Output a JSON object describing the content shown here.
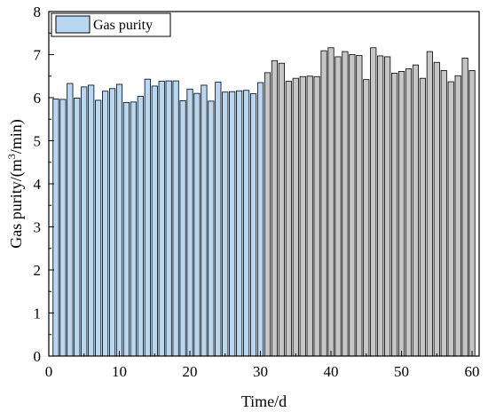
{
  "chart_data": {
    "type": "bar",
    "xlabel": "Time/d",
    "ylabel_main": "Gas purity/(m",
    "ylabel_sup": "3",
    "ylabel_end": "/min)",
    "xlim": [
      0,
      61
    ],
    "ylim": [
      0,
      8
    ],
    "xticks": [
      0,
      10,
      20,
      30,
      40,
      50,
      60
    ],
    "yticks": [
      0,
      1,
      2,
      3,
      4,
      5,
      6,
      7,
      8
    ],
    "legend": {
      "label": "Gas purity",
      "position": "top-left"
    },
    "colors": {
      "series_a": "#b7d7f3",
      "series_b": "#c6c6c6",
      "edge": "#000000"
    },
    "split_after_day": 30,
    "x": [
      1,
      2,
      3,
      4,
      5,
      6,
      7,
      8,
      9,
      10,
      11,
      12,
      13,
      14,
      15,
      16,
      17,
      18,
      19,
      20,
      21,
      22,
      23,
      24,
      25,
      26,
      27,
      28,
      29,
      30,
      31,
      32,
      33,
      34,
      35,
      36,
      37,
      38,
      39,
      40,
      41,
      42,
      43,
      44,
      45,
      46,
      47,
      48,
      49,
      50,
      51,
      52,
      53,
      54,
      55,
      56,
      57,
      58,
      59,
      60
    ],
    "values": [
      5.97,
      5.96,
      6.33,
      5.99,
      6.25,
      6.29,
      5.94,
      6.15,
      6.21,
      6.31,
      5.89,
      5.9,
      6.03,
      6.43,
      6.27,
      6.38,
      6.39,
      6.39,
      5.93,
      6.2,
      6.1,
      6.29,
      5.92,
      6.36,
      6.13,
      6.14,
      6.16,
      6.17,
      6.09,
      6.35,
      6.58,
      6.86,
      6.8,
      6.38,
      6.45,
      6.49,
      6.5,
      6.49,
      7.09,
      7.16,
      6.95,
      7.07,
      7.0,
      6.98,
      6.42,
      7.16,
      6.97,
      6.95,
      6.57,
      6.61,
      6.67,
      6.76,
      6.45,
      7.07,
      6.82,
      6.63,
      6.37,
      6.51,
      6.92,
      6.63
    ]
  }
}
